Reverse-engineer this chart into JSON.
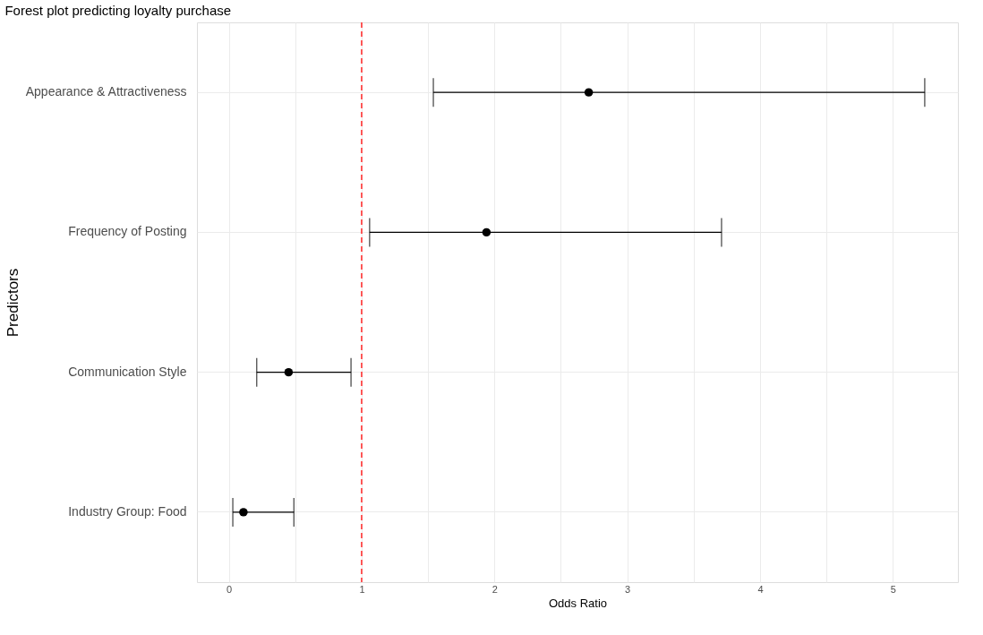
{
  "chart_data": {
    "type": "scatter",
    "title": "Forest plot predicting loyalty purchase",
    "xlabel": "Odds Ratio",
    "ylabel": "Predictors",
    "orientation": "horizontal",
    "categories": [
      "Appearance & Attractiveness",
      "Frequency of Posting",
      "Communication Style",
      "Industry Group: Food"
    ],
    "series": [
      {
        "color": "#000000",
        "values": [
          2.71,
          1.94,
          0.45,
          0.11
        ],
        "errors": [
          [
            1.54,
            5.24
          ],
          [
            1.06,
            3.71
          ],
          [
            0.21,
            0.92
          ],
          [
            0.03,
            0.49
          ]
        ]
      }
    ],
    "xlim": [
      -0.24,
      5.49
    ],
    "xticks": [
      0,
      {
        "value": 0.5,
        "label": null
      },
      1,
      {
        "value": 1.5,
        "label": null
      },
      2,
      {
        "value": 2.5,
        "label": null
      },
      3,
      {
        "value": 3.5,
        "label": null
      },
      4,
      {
        "value": 4.5,
        "label": null
      },
      5
    ],
    "ref_lines": [
      {
        "axis": "x",
        "value": 1,
        "color": "#ff3333",
        "line_style": "dashed"
      }
    ],
    "grid": true,
    "marker": "circle"
  }
}
